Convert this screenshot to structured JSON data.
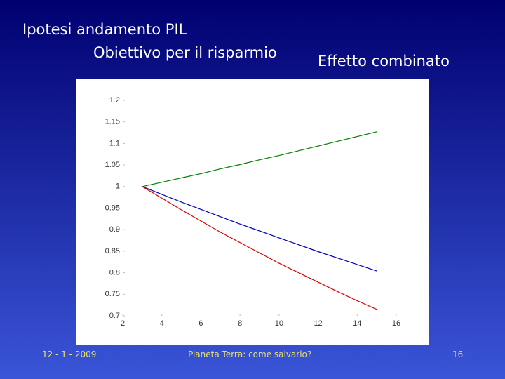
{
  "slide": {
    "title": "Ipotesi andamento PIL",
    "subtitle": "Obiettivo per il risparmio",
    "heading": "Effetto combinato",
    "footer_left": "12 - 1 - 2009",
    "footer_center": "Pianeta Terra: come salvarlo?",
    "footer_right": "16"
  },
  "chart_data": {
    "type": "line",
    "x": [
      3,
      4,
      5,
      6,
      7,
      8,
      9,
      10,
      11,
      12,
      13,
      14,
      15
    ],
    "series": [
      {
        "color": "#008000",
        "values": [
          1,
          1.01,
          1.02,
          1.03,
          1.041,
          1.051,
          1.062,
          1.072,
          1.083,
          1.094,
          1.105,
          1.116,
          1.127
        ]
      },
      {
        "color": "#0000c0",
        "values": [
          1,
          0.982,
          0.964,
          0.947,
          0.93,
          0.913,
          0.897,
          0.881,
          0.865,
          0.849,
          0.834,
          0.819,
          0.804
        ]
      },
      {
        "color": "#e00000",
        "values": [
          1,
          0.973,
          0.946,
          0.92,
          0.894,
          0.87,
          0.846,
          0.822,
          0.8,
          0.778,
          0.756,
          0.735,
          0.715
        ]
      }
    ],
    "xlim": [
      2,
      16
    ],
    "xticks": [
      2,
      4,
      6,
      8,
      10,
      12,
      14,
      16
    ],
    "ylim": [
      0.7,
      1.2
    ],
    "yticks": [
      0.7,
      0.75,
      0.8,
      0.85,
      0.9,
      0.95,
      1,
      1.05,
      1.1,
      1.15,
      1.2
    ],
    "grid": false
  }
}
